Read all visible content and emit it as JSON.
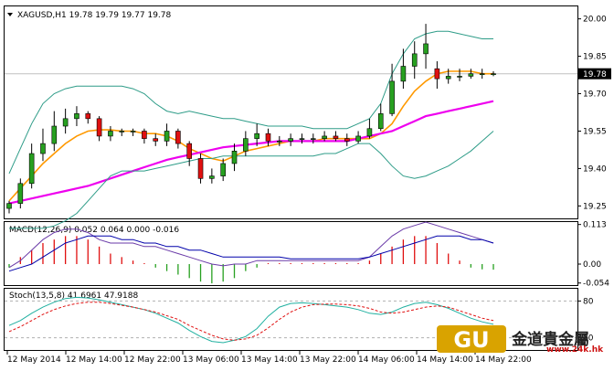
{
  "chart_data": [
    {
      "type": "candlestick",
      "panel": "price",
      "title": "XAGUSD,H1  19.78 19.79 19.77 19.78",
      "title_parts": {
        "symbol": "XAGUSD,H1",
        "ohlc": [
          "19.78",
          "19.79",
          "19.77",
          "19.78"
        ]
      },
      "yticks": [
        20.0,
        19.85,
        19.7,
        19.55,
        19.4,
        19.25
      ],
      "ylim": [
        19.2,
        20.05
      ],
      "current_price": "19.78",
      "series": [
        {
          "name": "",
          "color": "#ff9900",
          "kind": "moving-average",
          "values": [
            19.27,
            19.32,
            19.37,
            19.42,
            19.46,
            19.5,
            19.53,
            19.55,
            19.555,
            19.555,
            19.55,
            19.55,
            19.54,
            19.54,
            19.53,
            19.51,
            19.48,
            19.46,
            19.44,
            19.43,
            19.45,
            19.47,
            19.48,
            19.49,
            19.5,
            19.51,
            19.51,
            19.51,
            19.52,
            19.52,
            19.52,
            19.52,
            19.52,
            19.54,
            19.58,
            19.65,
            19.71,
            19.75,
            19.78,
            19.79,
            19.79,
            19.79,
            19.78,
            19.78
          ]
        },
        {
          "name": "",
          "color": "#ee00ee",
          "kind": "moving-average",
          "values": [
            19.26,
            19.27,
            19.28,
            19.29,
            19.3,
            19.31,
            19.32,
            19.33,
            19.345,
            19.36,
            19.375,
            19.39,
            19.405,
            19.42,
            19.435,
            19.445,
            19.455,
            19.465,
            19.475,
            19.485,
            19.49,
            19.495,
            19.5,
            19.505,
            19.51,
            19.51,
            19.51,
            19.51,
            19.51,
            19.51,
            19.51,
            19.52,
            19.53,
            19.54,
            19.55,
            19.57,
            19.59,
            19.61,
            19.62,
            19.63,
            19.64,
            19.65,
            19.66,
            19.67
          ]
        },
        {
          "name": "",
          "color": "#2e9c88",
          "kind": "band-upper",
          "values": [
            19.38,
            19.48,
            19.58,
            19.66,
            19.7,
            19.72,
            19.73,
            19.73,
            19.73,
            19.73,
            19.73,
            19.72,
            19.7,
            19.66,
            19.63,
            19.62,
            19.63,
            19.62,
            19.61,
            19.6,
            19.6,
            19.59,
            19.58,
            19.57,
            19.57,
            19.57,
            19.57,
            19.56,
            19.56,
            19.56,
            19.56,
            19.58,
            19.6,
            19.66,
            19.78,
            19.86,
            19.92,
            19.94,
            19.95,
            19.95,
            19.94,
            19.93,
            19.92,
            19.92
          ]
        },
        {
          "name": "",
          "color": "#2e9c88",
          "kind": "band-lower",
          "values": [
            19.16,
            19.16,
            19.16,
            19.16,
            19.17,
            19.19,
            19.22,
            19.27,
            19.32,
            19.37,
            19.39,
            19.39,
            19.39,
            19.4,
            19.41,
            19.42,
            19.43,
            19.44,
            19.44,
            19.45,
            19.45,
            19.45,
            19.45,
            19.45,
            19.45,
            19.45,
            19.45,
            19.45,
            19.46,
            19.46,
            19.48,
            19.5,
            19.5,
            19.46,
            19.41,
            19.37,
            19.36,
            19.37,
            19.39,
            19.41,
            19.44,
            19.47,
            19.51,
            19.55
          ]
        }
      ],
      "candles": {
        "open": [
          19.24,
          19.26,
          19.34,
          19.46,
          19.5,
          19.57,
          19.6,
          19.62,
          19.6,
          19.53,
          19.55,
          19.55,
          19.55,
          19.52,
          19.51,
          19.55,
          19.5,
          19.44,
          19.36,
          19.37,
          19.42,
          19.47,
          19.52,
          19.54,
          19.51,
          19.51,
          19.52,
          19.52,
          19.52,
          19.53,
          19.52,
          19.51,
          19.53,
          19.56,
          19.62,
          19.75,
          19.81,
          19.86,
          19.8,
          19.76,
          19.77,
          19.77,
          19.78,
          19.78
        ],
        "close": [
          19.26,
          19.34,
          19.46,
          19.5,
          19.57,
          19.6,
          19.62,
          19.6,
          19.53,
          19.55,
          19.55,
          19.55,
          19.52,
          19.51,
          19.55,
          19.5,
          19.44,
          19.36,
          19.37,
          19.42,
          19.47,
          19.52,
          19.54,
          19.51,
          19.51,
          19.52,
          19.52,
          19.52,
          19.53,
          19.52,
          19.51,
          19.53,
          19.56,
          19.62,
          19.75,
          19.81,
          19.86,
          19.9,
          19.76,
          19.77,
          19.77,
          19.78,
          19.78,
          19.78
        ],
        "high": [
          19.27,
          19.36,
          19.5,
          19.56,
          19.63,
          19.64,
          19.65,
          19.63,
          19.61,
          19.57,
          19.56,
          19.56,
          19.56,
          19.54,
          19.58,
          19.56,
          19.51,
          19.46,
          19.4,
          19.44,
          19.5,
          19.55,
          19.58,
          19.56,
          19.53,
          19.54,
          19.54,
          19.54,
          19.55,
          19.55,
          19.54,
          19.55,
          19.6,
          19.66,
          19.82,
          19.88,
          19.91,
          19.98,
          19.83,
          19.8,
          19.8,
          19.8,
          19.8,
          19.79
        ],
        "low": [
          19.22,
          19.24,
          19.32,
          19.43,
          19.47,
          19.54,
          19.57,
          19.58,
          19.51,
          19.51,
          19.53,
          19.53,
          19.5,
          19.49,
          19.49,
          19.48,
          19.41,
          19.34,
          19.34,
          19.35,
          19.39,
          19.45,
          19.49,
          19.49,
          19.49,
          19.49,
          19.5,
          19.5,
          19.51,
          19.51,
          19.49,
          19.5,
          19.52,
          19.55,
          19.61,
          19.72,
          19.76,
          19.8,
          19.72,
          19.74,
          19.75,
          19.76,
          19.76,
          19.77
        ]
      },
      "colors": {
        "candle_up": "#27a020",
        "candle_down": "#e01010",
        "current_price_bg": "#000000"
      }
    },
    {
      "type": "bar",
      "panel": "macd",
      "title": "MACD(12,26,9) 0.052 0.064 0.000 -0.016",
      "yticks": [
        0.113,
        0.0,
        -0.054
      ],
      "ylim": [
        -0.06,
        0.12
      ],
      "histogram": [
        -0.01,
        0.02,
        0.04,
        0.06,
        0.07,
        0.08,
        0.08,
        0.07,
        0.05,
        0.03,
        0.02,
        0.01,
        0.0,
        -0.01,
        -0.02,
        -0.03,
        -0.04,
        -0.05,
        -0.055,
        -0.05,
        -0.04,
        -0.02,
        -0.01,
        0.0,
        0.0,
        0.0,
        0.0,
        0.0,
        0.0,
        0.0,
        0.0,
        0.0,
        0.01,
        0.03,
        0.05,
        0.07,
        0.08,
        0.08,
        0.06,
        0.03,
        0.01,
        -0.01,
        -0.015,
        -0.016
      ],
      "series": [
        {
          "name": "",
          "color": "#6a3aa8",
          "values": [
            -0.01,
            0.01,
            0.04,
            0.07,
            0.09,
            0.1,
            0.1,
            0.09,
            0.07,
            0.06,
            0.06,
            0.06,
            0.05,
            0.05,
            0.04,
            0.03,
            0.02,
            0.01,
            0.0,
            -0.005,
            0.0,
            0.0,
            0.01,
            0.01,
            0.01,
            0.01,
            0.01,
            0.01,
            0.01,
            0.01,
            0.01,
            0.01,
            0.02,
            0.05,
            0.08,
            0.1,
            0.11,
            0.12,
            0.11,
            0.1,
            0.09,
            0.08,
            0.07,
            0.06
          ]
        },
        {
          "name": "",
          "color": "#0000aa",
          "values": [
            -0.02,
            -0.01,
            0.0,
            0.02,
            0.04,
            0.06,
            0.07,
            0.08,
            0.08,
            0.08,
            0.07,
            0.07,
            0.06,
            0.06,
            0.05,
            0.05,
            0.04,
            0.04,
            0.03,
            0.02,
            0.02,
            0.02,
            0.02,
            0.02,
            0.02,
            0.015,
            0.015,
            0.015,
            0.015,
            0.015,
            0.015,
            0.015,
            0.02,
            0.03,
            0.04,
            0.05,
            0.06,
            0.07,
            0.08,
            0.08,
            0.08,
            0.07,
            0.07,
            0.06
          ]
        }
      ],
      "colors": {
        "hist_pos": "#e01010",
        "hist_neg": "#27a020"
      }
    },
    {
      "type": "line",
      "panel": "stoch",
      "title": "Stoch(13,5,8) 41.6961 47.9188",
      "yticks": [
        80,
        20
      ],
      "ylim": [
        0,
        100
      ],
      "levels": [
        80,
        20
      ],
      "series": [
        {
          "name": "",
          "color": "#20b0a0",
          "dash": false,
          "values": [
            40,
            48,
            60,
            70,
            78,
            84,
            86,
            85,
            82,
            78,
            74,
            70,
            66,
            60,
            52,
            44,
            32,
            22,
            14,
            12,
            16,
            22,
            35,
            55,
            70,
            76,
            77,
            76,
            74,
            72,
            70,
            66,
            60,
            58,
            62,
            70,
            76,
            78,
            74,
            68,
            60,
            52,
            46,
            42
          ]
        },
        {
          "name": "",
          "color": "#e01010",
          "dash": true,
          "values": [
            30,
            38,
            48,
            58,
            66,
            72,
            76,
            78,
            78,
            76,
            73,
            70,
            66,
            62,
            56,
            50,
            40,
            32,
            24,
            18,
            16,
            18,
            24,
            36,
            50,
            62,
            70,
            74,
            75,
            75,
            74,
            72,
            68,
            62,
            60,
            62,
            66,
            70,
            72,
            70,
            64,
            58,
            52,
            48
          ]
        }
      ]
    }
  ],
  "x_axis": {
    "labels": [
      "12 May 2014",
      "12 May 14:00",
      "12 May 22:00",
      "13 May 06:00",
      "13 May 14:00",
      "13 May 22:00",
      "14 May 06:00",
      "14 May 14:00",
      "14 May 22:00"
    ]
  },
  "watermark": {
    "logo_text": "GU",
    "chinese_text": "金道貴金屬",
    "url": "www.24k.hk",
    "colors": {
      "logo": "#d9a300",
      "text": "#222222",
      "url": "#cc1111"
    }
  },
  "colors": {
    "background": "#ffffff",
    "grid": "#000000",
    "text": "#000000"
  }
}
